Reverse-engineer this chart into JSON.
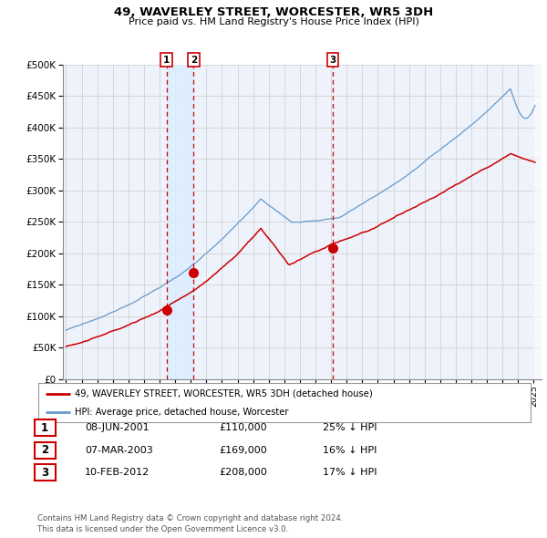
{
  "title": "49, WAVERLEY STREET, WORCESTER, WR5 3DH",
  "subtitle": "Price paid vs. HM Land Registry's House Price Index (HPI)",
  "legend_line1": "49, WAVERLEY STREET, WORCESTER, WR5 3DH (detached house)",
  "legend_line2": "HPI: Average price, detached house, Worcester",
  "transactions": [
    {
      "num": 1,
      "date_str": "08-JUN-2001",
      "date_x": 2001.44,
      "price": 110000,
      "label": "25% ↓ HPI"
    },
    {
      "num": 2,
      "date_str": "07-MAR-2003",
      "date_x": 2003.18,
      "price": 169000,
      "label": "16% ↓ HPI"
    },
    {
      "num": 3,
      "date_str": "10-FEB-2012",
      "date_x": 2012.11,
      "price": 208000,
      "label": "17% ↓ HPI"
    }
  ],
  "price_color": "#cc0000",
  "hpi_color": "#6699cc",
  "shade_color": "#ddeeff",
  "vline_color": "#cc0000",
  "grid_color": "#cccccc",
  "bg_color": "#ffffff",
  "plot_bg_color": "#eef2fb",
  "footnote": "Contains HM Land Registry data © Crown copyright and database right 2024.\nThis data is licensed under the Open Government Licence v3.0.",
  "ylim": [
    0,
    500000
  ],
  "xlim_start": 1994.8,
  "xlim_end": 2025.5
}
